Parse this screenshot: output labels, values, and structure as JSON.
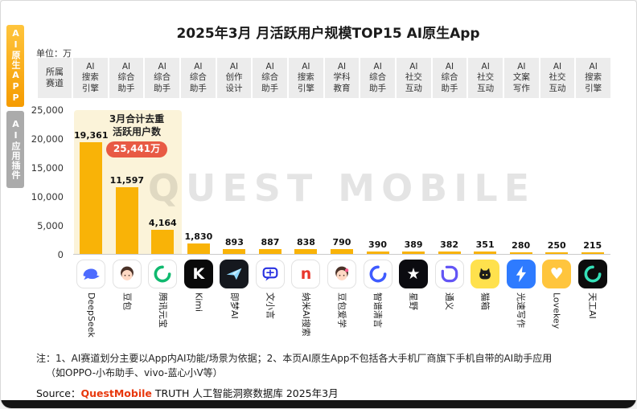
{
  "page": {
    "title": "2025年3月 月活跃用户规模TOP15 AI原生App",
    "unit_label": "单位：万",
    "side_tabs": [
      {
        "label": "AI原生APP",
        "active": true
      },
      {
        "label": "AI应用插件",
        "active": false
      }
    ],
    "category_header_label": "所属\n赛道",
    "annotation": {
      "line1": "3月合计去重",
      "line2": "活跃用户数",
      "badge": "25,441万"
    },
    "watermark": "QUEST MOBILE",
    "footnote_line1": "注：1、AI赛道划分主要以App内AI功能/场景为依据；2、本页AI原生App不包括各大手机厂商旗下手机自带的AI助手应用",
    "footnote_line2": "（如OPPO-小布助手、vivo-蓝心小V等）",
    "source_prefix": "Source：",
    "source_brand": "QuestMobile",
    "source_suffix": " TRUTH 人工智能洞察数据库 2025年3月"
  },
  "theme": {
    "bar": "#F9B307",
    "highlight": "#FBF3D9",
    "badge_bg": "#E85A44",
    "badge_text": "#ffffff",
    "tab_active_top": "#FFC53D",
    "tab_active_bottom": "#F59B00",
    "tab_inactive": "#ABABAB",
    "track_cell_bg": "#ECECEC",
    "brand": "#E8380D"
  },
  "chart_data": {
    "type": "bar",
    "title": "2025年3月 月活跃用户规模TOP15 AI原生App",
    "unit": "万",
    "categories": [
      "DeepSeek",
      "豆包",
      "腾讯元宝",
      "Kimi",
      "即梦AI",
      "文小言",
      "纳米AI搜索",
      "豆包爱学",
      "智谱清言",
      "星野",
      "通义",
      "猫箱",
      "光速写作",
      "Lovekey",
      "天工AI"
    ],
    "values": [
      19361,
      11597,
      4164,
      1830,
      893,
      887,
      838,
      790,
      390,
      389,
      382,
      351,
      280,
      250,
      215
    ],
    "value_labels": [
      "19,361",
      "11,597",
      "4,164",
      "1,830",
      "893",
      "887",
      "838",
      "790",
      "390",
      "389",
      "382",
      "351",
      "280",
      "250",
      "215"
    ],
    "tracks": [
      "AI搜索引擎",
      "AI综合助手",
      "AI综合助手",
      "AI综合助手",
      "AI创作设计",
      "AI综合助手",
      "AI搜索引擎",
      "AI学科教育",
      "AI综合助手",
      "AI社交互动",
      "AI综合助手",
      "AI社交互动",
      "AI文案写作",
      "AI社交互动",
      "AI搜索引擎"
    ],
    "xlabel": "",
    "ylabel": "单位：万",
    "ylim": [
      0,
      25000
    ],
    "yticks": [
      0,
      5000,
      10000,
      15000,
      20000,
      25000
    ],
    "ytick_labels": [
      "0",
      "5,000",
      "10,000",
      "15,000",
      "20,000",
      "25,000"
    ],
    "grid": false,
    "legend": false,
    "annotation": "3月合计去重活跃用户数 25,441万",
    "highlight_first_n": 3
  },
  "apps": [
    {
      "slug": "deepseek",
      "name": "DeepSeek",
      "track": "AI\n搜索\n引擎",
      "value": 19361,
      "label": "19,361",
      "icon": {
        "shape": "whale",
        "bg": "#ffffff",
        "fg": "#4D6BFE",
        "border": true
      }
    },
    {
      "slug": "doubao",
      "name": "豆包",
      "track": "AI\n综合\n助手",
      "value": 11597,
      "label": "11,597",
      "icon": {
        "shape": "face",
        "bg": "#ffffff",
        "fg": "#4A3228",
        "skin": "#FFD9C4",
        "border": true
      }
    },
    {
      "slug": "tencent-yuanbao",
      "name": "腾讯元宝",
      "track": "AI\n综合\n助手",
      "value": 4164,
      "label": "4,164",
      "icon": {
        "shape": "swirl",
        "bg": "#ffffff",
        "fg": "#10B96F",
        "border": true
      }
    },
    {
      "slug": "kimi",
      "name": "Kimi",
      "track": "AI\n综合\n助手",
      "value": 1830,
      "label": "1,830",
      "icon": {
        "shape": "letter",
        "glyph": "K",
        "bg": "#0A0A0A",
        "fg": "#ffffff"
      }
    },
    {
      "slug": "jimeng-ai",
      "name": "即梦AI",
      "track": "AI\n创作\n设计",
      "value": 893,
      "label": "893",
      "icon": {
        "shape": "plane",
        "bg": "#15181E",
        "fg": "#8FD9FF"
      }
    },
    {
      "slug": "wenxiaoyan",
      "name": "文小言",
      "track": "AI\n综合\n助手",
      "value": 887,
      "label": "887",
      "icon": {
        "shape": "bubble",
        "bg": "#ffffff",
        "fg": "#2932E1",
        "border": true
      }
    },
    {
      "slug": "nami-ai-search",
      "name": "纳米AI搜索",
      "track": "AI\n搜索\n引擎",
      "value": 838,
      "label": "838",
      "icon": {
        "shape": "letter",
        "glyph": "n",
        "bg": "#ffffff",
        "fg": "#E8372C",
        "border": true
      }
    },
    {
      "slug": "doubao-aixue",
      "name": "豆包爱学",
      "track": "AI\n学科\n教育",
      "value": 790,
      "label": "790",
      "icon": {
        "shape": "face",
        "bg": "#ffffff",
        "fg": "#4A3228",
        "skin": "#FFD9C4",
        "accent": "#FF5E8E",
        "border": true
      }
    },
    {
      "slug": "zhipu-qingyan",
      "name": "智谱清言",
      "track": "AI\n综合\n助手",
      "value": 390,
      "label": "390",
      "icon": {
        "shape": "swirl",
        "bg": "#ffffff",
        "fg": "#3E5BFF",
        "border": true
      }
    },
    {
      "slug": "xingye",
      "name": "星野",
      "track": "AI\n社交\n互动",
      "value": 389,
      "label": "389",
      "icon": {
        "shape": "star",
        "bg": "#0B0B10",
        "fg": "#ffffff"
      }
    },
    {
      "slug": "tongyi",
      "name": "通义",
      "track": "AI\n综合\n助手",
      "value": 382,
      "label": "382",
      "icon": {
        "shape": "knot",
        "bg": "#ffffff",
        "fg": "#6355F5",
        "border": true
      }
    },
    {
      "slug": "maoxiang",
      "name": "猫箱",
      "track": "AI\n社交\n互动",
      "value": 351,
      "label": "351",
      "icon": {
        "shape": "cat",
        "bg": "#FFE14D",
        "fg": "#1B1B1B"
      }
    },
    {
      "slug": "guangsu-xiezuo",
      "name": "光速写作",
      "track": "AI\n文案\n写作",
      "value": 280,
      "label": "280",
      "icon": {
        "shape": "bolt",
        "bg": "#2E7BFF",
        "fg": "#ffffff"
      }
    },
    {
      "slug": "lovekey",
      "name": "Lovekey",
      "track": "AI\n社交\n互动",
      "value": 250,
      "label": "250",
      "icon": {
        "shape": "heart",
        "bg": "#FFC53D",
        "fg": "#ffffff"
      }
    },
    {
      "slug": "tiangong-ai",
      "name": "天工AI",
      "track": "AI\n搜索\n引擎",
      "value": 215,
      "label": "215",
      "icon": {
        "shape": "swirl",
        "bg": "#0C0C0C",
        "fg": "#35E0B8"
      }
    }
  ]
}
